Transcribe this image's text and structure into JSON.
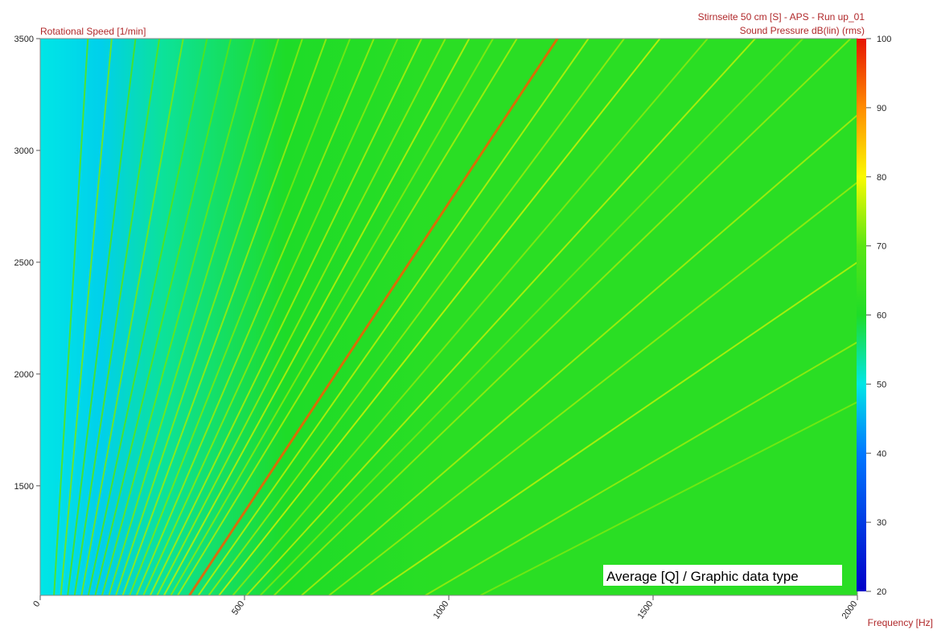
{
  "chart_data": {
    "type": "spectrogram",
    "title": "Stirnseite 50 cm [S] - APS - Run up_01",
    "y_label": "Rotational Speed [1/min]",
    "x_label": "Frequency [Hz]",
    "colorbar_label": "Sound Pressure dB(lin) (rms)",
    "annotation": "Average [Q] / Graphic data type",
    "xlim": [
      0,
      2000
    ],
    "xticks": [
      0,
      500,
      1000,
      1500,
      2000
    ],
    "ylim": [
      1010,
      3500
    ],
    "yticks": [
      1500,
      2000,
      2500,
      3000,
      3500
    ],
    "clim": [
      20,
      100
    ],
    "cticks": [
      20,
      30,
      40,
      50,
      60,
      70,
      80,
      90,
      100
    ],
    "field": {
      "frequency": [
        0,
        150,
        300,
        600,
        1000,
        2000
      ],
      "level": [
        50,
        48,
        54,
        60,
        62,
        62
      ]
    },
    "orders": [
      {
        "order": 2,
        "level": 70
      },
      {
        "order": 3,
        "level": 72
      },
      {
        "order": 4,
        "level": 68
      },
      {
        "order": 5,
        "level": 70
      },
      {
        "order": 6,
        "level": 72
      },
      {
        "order": 7,
        "level": 69
      },
      {
        "order": 8,
        "level": 70
      },
      {
        "order": 9,
        "level": 71
      },
      {
        "order": 10,
        "level": 72
      },
      {
        "order": 11,
        "level": 73
      },
      {
        "order": 12,
        "level": 74
      },
      {
        "order": 13,
        "level": 72
      },
      {
        "order": 14,
        "level": 74
      },
      {
        "order": 15,
        "level": 73
      },
      {
        "order": 16,
        "level": 75
      },
      {
        "order": 17,
        "level": 74
      },
      {
        "order": 18,
        "level": 76
      },
      {
        "order": 19,
        "level": 73
      },
      {
        "order": 20,
        "level": 75
      },
      {
        "order": 21.7,
        "level": 94
      },
      {
        "order": 23,
        "level": 76
      },
      {
        "order": 24.5,
        "level": 74
      },
      {
        "order": 26,
        "level": 77
      },
      {
        "order": 28,
        "level": 73
      },
      {
        "order": 30,
        "level": 76
      },
      {
        "order": 32,
        "level": 72
      },
      {
        "order": 34,
        "level": 74
      },
      {
        "order": 38,
        "level": 75
      },
      {
        "order": 42,
        "level": 74
      },
      {
        "order": 48,
        "level": 76
      },
      {
        "order": 56,
        "level": 74
      },
      {
        "order": 64,
        "level": 72
      }
    ]
  }
}
